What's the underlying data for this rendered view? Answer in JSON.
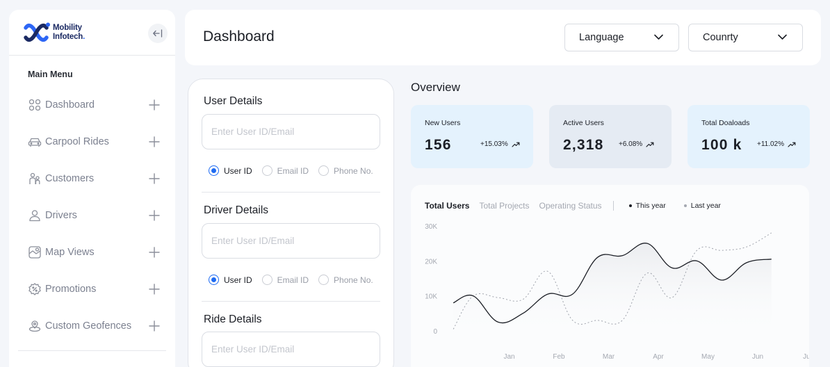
{
  "sidebar": {
    "logo_line1": "Mobility",
    "logo_line2": "Infotech",
    "logo_dot": ".",
    "menu_title": "Main Menu",
    "items": [
      {
        "label": "Dashboard",
        "icon": "grid-icon"
      },
      {
        "label": "Carpool Rides",
        "icon": "car-icon"
      },
      {
        "label": "Customers",
        "icon": "customers-icon"
      },
      {
        "label": "Drivers",
        "icon": "user-icon"
      },
      {
        "label": "Map Views",
        "icon": "map-icon"
      },
      {
        "label": "Promotions",
        "icon": "badge-percent-icon"
      },
      {
        "label": "Custom Geofences",
        "icon": "geofence-icon"
      }
    ]
  },
  "header": {
    "title": "Dashboard",
    "language_label": "Language",
    "country_label": "Counrty"
  },
  "details": {
    "sections": [
      {
        "title": "User Details",
        "placeholder": "Enter User ID/Email",
        "options": [
          "User ID",
          "Email ID",
          "Phone No."
        ],
        "selected": 0
      },
      {
        "title": "Driver Details",
        "placeholder": "Enter User ID/Email",
        "options": [
          "User ID",
          "Email ID",
          "Phone No."
        ],
        "selected": 0
      },
      {
        "title": "Ride Details",
        "placeholder": "Enter User ID/Email"
      }
    ]
  },
  "overview": {
    "title": "Overview",
    "stats": [
      {
        "label": "New Users",
        "value": "156",
        "change": "+15.03%",
        "bg": "#e4f2fd"
      },
      {
        "label": "Active Users",
        "value": "2,318",
        "change": "+6.08%",
        "bg": "#e5ebf3"
      },
      {
        "label": "Total Doaloads",
        "value": "100 k",
        "change": "+11.02%",
        "bg": "#e4f2fd"
      }
    ]
  },
  "chart": {
    "tabs": [
      "Total Users",
      "Total Projects",
      "Operating Status"
    ],
    "active_tab": 0,
    "legend": [
      {
        "name": "This year",
        "color": "#1c1f26"
      },
      {
        "name": "Last year",
        "color": "#a4a8b1"
      }
    ]
  },
  "chart_data": {
    "type": "line",
    "categories": [
      "Jan",
      "Feb",
      "Mar",
      "Apr",
      "May",
      "Jun",
      "Jul"
    ],
    "x": [
      0.1,
      0.5,
      1.0,
      1.5,
      2.0,
      2.5,
      3.0,
      3.5,
      4.0,
      4.5,
      5.0,
      5.5,
      6.0,
      6.5
    ],
    "series": [
      {
        "name": "This year",
        "values": [
          8000,
          10000,
          2500,
          5000,
          10500,
          10500,
          21000,
          21500,
          25000,
          18000,
          20000,
          14500,
          19500,
          20500
        ]
      },
      {
        "name": "Last year",
        "values": [
          500,
          10000,
          9500,
          9000,
          17000,
          3000,
          3000,
          3000,
          16500,
          9500,
          23000,
          23000,
          24000,
          28000
        ]
      }
    ],
    "ylim": [
      0,
      30000
    ],
    "yticks": [
      "0",
      "10K",
      "20K",
      "30K"
    ],
    "ytick_values": [
      0,
      10000,
      20000,
      30000
    ],
    "area_under": "This year",
    "grid": false
  }
}
